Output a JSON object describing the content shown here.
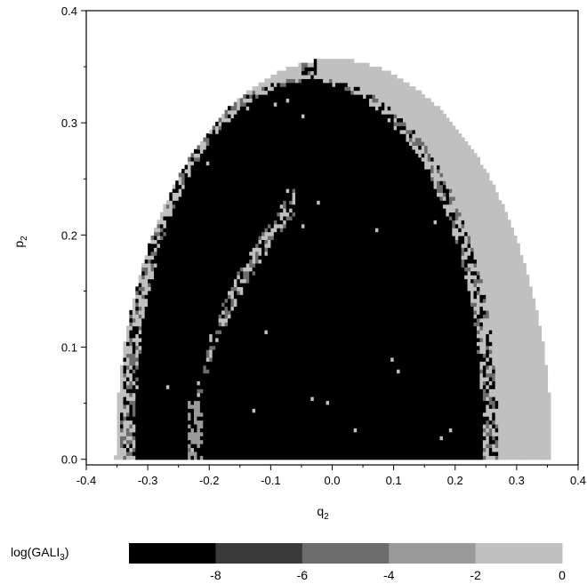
{
  "chart_data": {
    "type": "heatmap",
    "xlabel": "q",
    "xlabel_sub": "2",
    "ylabel": "p",
    "ylabel_sub": "2",
    "xlim": [
      -0.4,
      0.4
    ],
    "ylim": [
      -0.005,
      0.4
    ],
    "xticks": [
      "-0.4",
      "-0.3",
      "-0.2",
      "-0.1",
      "0.0",
      "0.1",
      "0.2",
      "0.3",
      "0.4"
    ],
    "yticks": [
      "0.0",
      "0.1",
      "0.2",
      "0.3",
      "0.4"
    ],
    "colorbar": {
      "label_prefix": "log(GALI",
      "label_sub": "3",
      "label_suffix": ")",
      "ticks": [
        "-8",
        "-6",
        "-4",
        "-2",
        "0"
      ],
      "range": [
        -10,
        0
      ],
      "bins": [
        {
          "from": -10,
          "to": -8,
          "color": "#000000"
        },
        {
          "from": -8,
          "to": -6,
          "color": "#3a3a3a"
        },
        {
          "from": -6,
          "to": -4,
          "color": "#6c6c6c"
        },
        {
          "from": -4,
          "to": -2,
          "color": "#9a9a9a"
        },
        {
          "from": -2,
          "to": 0,
          "color": "#c0c0c0"
        }
      ]
    },
    "regions": {
      "energy_boundary": {
        "q_max": 0.355,
        "p_max": 0.355,
        "log_gali3": -0.5
      },
      "regular_zone": {
        "q_left": -0.335,
        "q_right": 0.255,
        "p_top": 0.337,
        "log_gali3": -9.5
      },
      "chaotic_filament": {
        "q_start": -0.23,
        "q_end": -0.06,
        "p_top": 0.23,
        "log_gali3": -1.5
      }
    },
    "grid": false,
    "legend": "colorbar-bottom"
  }
}
